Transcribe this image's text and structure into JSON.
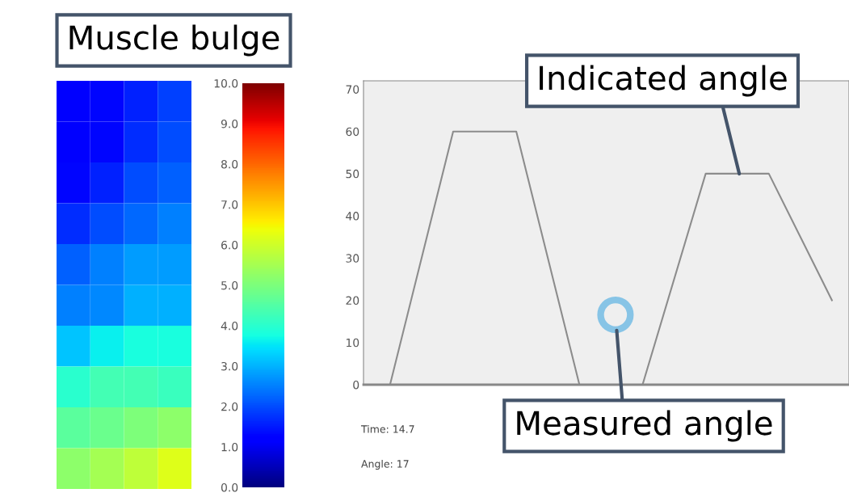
{
  "chart_data": [
    {
      "type": "heatmap",
      "title": "Muscle bulge",
      "categories": [
        null,
        null,
        null,
        null
      ],
      "y_categories": [
        null,
        null,
        null,
        null,
        null,
        null,
        null,
        null,
        null,
        null
      ],
      "cells": [
        [
          1.2,
          1.3,
          1.6,
          1.9
        ],
        [
          1.1,
          1.3,
          1.7,
          2.0
        ],
        [
          1.3,
          1.6,
          2.0,
          2.2
        ],
        [
          1.7,
          2.0,
          2.3,
          2.5
        ],
        [
          2.2,
          2.5,
          2.8,
          2.8
        ],
        [
          2.5,
          2.6,
          3.0,
          3.0
        ],
        [
          3.2,
          3.6,
          3.8,
          3.8
        ],
        [
          4.0,
          4.3,
          4.3,
          4.2
        ],
        [
          4.6,
          4.8,
          5.0,
          5.2
        ],
        [
          5.2,
          5.5,
          5.8,
          6.2
        ]
      ],
      "clim": [
        0,
        10
      ],
      "cticks": [
        {
          "value": 0,
          "label": "0.0"
        },
        {
          "value": 1,
          "label": "1.0"
        },
        {
          "value": 2,
          "label": "2.0"
        },
        {
          "value": 3,
          "label": "3.0"
        },
        {
          "value": 4,
          "label": "4.0"
        },
        {
          "value": 5,
          "label": "5.0"
        },
        {
          "value": 6,
          "label": "6.0"
        },
        {
          "value": 7,
          "label": "7.0"
        },
        {
          "value": 8,
          "label": "8.0"
        },
        {
          "value": 9,
          "label": "9.0"
        },
        {
          "value": 10,
          "label": "10.0"
        }
      ]
    },
    {
      "type": "line",
      "categories": [
        null,
        null,
        null,
        null,
        null,
        null,
        null,
        null
      ],
      "ylim": [
        0,
        72
      ],
      "yticks": [
        0,
        10,
        20,
        30,
        40,
        50,
        60,
        70
      ],
      "grid": false,
      "legend": false,
      "series": [
        {
          "color": "#8c8c8c",
          "values": [
            0,
            60,
            60,
            0,
            0,
            50,
            50,
            20
          ],
          "marker": "none"
        }
      ],
      "annotations": [
        "Indicated angle",
        "Measured angle",
        "Time: 14.7",
        "Angle: 17"
      ]
    }
  ]
}
